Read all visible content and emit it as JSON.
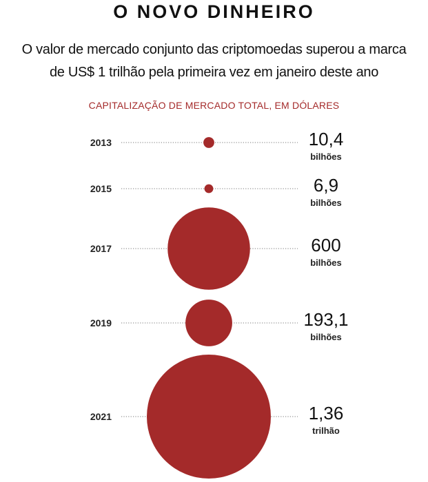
{
  "header": {
    "title": "O NOVO DINHEIRO",
    "subtitle_line1": "O valor de mercado conjunto das criptomoedas superou a marca",
    "subtitle_line2": "de US$ 1 trilhão pela primeira vez em janeiro deste ano"
  },
  "chart_data": {
    "type": "bubble",
    "title": "O NOVO DINHEIRO",
    "subtitle": "CAPITALIZAÇÃO DE MERCADO TOTAL, EM DÓLARES",
    "color": "#a42a2a",
    "points": [
      {
        "year": "2013",
        "value": 10.4,
        "label": "10,4",
        "unit": "bilhões"
      },
      {
        "year": "2015",
        "value": 6.9,
        "label": "6,9",
        "unit": "bilhões"
      },
      {
        "year": "2017",
        "value": 600,
        "label": "600",
        "unit": "bilhões"
      },
      {
        "year": "2019",
        "value": 193.1,
        "label": "193,1",
        "unit": "bilhões"
      },
      {
        "year": "2021",
        "value": 1360,
        "label": "1,36",
        "unit": "trilhão"
      }
    ]
  }
}
